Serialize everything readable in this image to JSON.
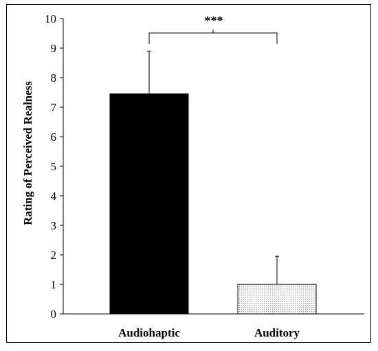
{
  "chart_data": {
    "type": "bar",
    "categories": [
      "Audiohaptic",
      "Auditory"
    ],
    "values": [
      7.45,
      1.0
    ],
    "error_bars": [
      1.45,
      0.95
    ],
    "title": "",
    "xlabel": "",
    "ylabel": "Rating of  Perceived Realness",
    "ylim": [
      0,
      10
    ],
    "yticks": [
      0,
      1,
      2,
      3,
      4,
      5,
      6,
      7,
      8,
      9,
      10
    ],
    "grid": false,
    "bar_fills": [
      "#000000",
      "#e6e6e6"
    ],
    "bar_patterns": [
      "solid",
      "dotted"
    ],
    "significance": {
      "label": "***",
      "between": [
        "Audiohaptic",
        "Auditory"
      ]
    }
  }
}
